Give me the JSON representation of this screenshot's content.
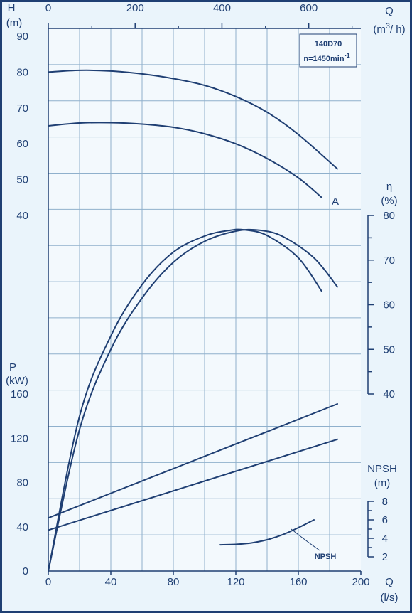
{
  "colors": {
    "ink": "#1f3f73",
    "grid": "#8fb0cc",
    "plot_bg": "#f3f9fd",
    "page_bg": "#eaf4fb",
    "border": "#1f3f73"
  },
  "chart_data": {
    "type": "line",
    "title": "",
    "model_label": "140D70",
    "speed_label": "n=1450min",
    "speed_label_sup": "-1",
    "x_axis": {
      "label_q": "Q",
      "label_unit": "(l/s)",
      "range": [
        0,
        200
      ],
      "ticks": [
        "0",
        "40",
        "80",
        "120",
        "160",
        "200"
      ]
    },
    "x_axis_top": {
      "label_q": "Q",
      "label_unit_pre": "(m",
      "label_unit_sup": "3",
      "label_unit_post": "/ h)",
      "range": [
        0,
        720
      ],
      "ticks": [
        "0",
        "200",
        "400",
        "600"
      ]
    },
    "head_axis": {
      "label": "H",
      "unit": "(m)",
      "range": [
        40,
        90
      ],
      "ticks": [
        "40",
        "50",
        "60",
        "70",
        "80",
        "90"
      ]
    },
    "efficiency_axis": {
      "label": "η",
      "unit": "(%)",
      "range": [
        40,
        80
      ],
      "ticks": [
        "40",
        "50",
        "60",
        "70",
        "80"
      ]
    },
    "power_axis": {
      "label": "P",
      "unit": "(kW)",
      "range": [
        0,
        160
      ],
      "ticks": [
        "0",
        "40",
        "80",
        "120",
        "160"
      ]
    },
    "npsh_axis": {
      "label": "NPSH",
      "unit": "(m)",
      "range": [
        2,
        8
      ],
      "ticks": [
        "2",
        "4",
        "6",
        "8"
      ]
    },
    "series": [
      {
        "group": "head",
        "curve": "full-impeller",
        "x": [
          0,
          20,
          40,
          60,
          80,
          100,
          120,
          140,
          160,
          185
        ],
        "y": [
          80,
          80.5,
          80.3,
          79.5,
          78.2,
          76.3,
          73.2,
          68.8,
          62.6,
          53
        ]
      },
      {
        "group": "head",
        "name": "A",
        "x": [
          0,
          20,
          40,
          60,
          80,
          100,
          120,
          140,
          160,
          175
        ],
        "y": [
          65,
          65.8,
          65.9,
          65.5,
          64.6,
          62.8,
          60,
          55.9,
          50.5,
          45
        ]
      },
      {
        "group": "efficiency",
        "curve": "full-impeller",
        "x": [
          0,
          20,
          40,
          60,
          80,
          100,
          120,
          135,
          150,
          170,
          185
        ],
        "y": [
          0,
          32,
          50,
          61.5,
          69.5,
          74.2,
          76.5,
          76.7,
          75.3,
          70.5,
          64
        ]
      },
      {
        "group": "efficiency",
        "curve": "A",
        "x": [
          0,
          20,
          40,
          60,
          80,
          100,
          115,
          125,
          140,
          160,
          175
        ],
        "y": [
          0,
          35,
          53,
          64.5,
          71.8,
          75.4,
          76.6,
          76.8,
          75.5,
          70.5,
          63
        ]
      },
      {
        "group": "power",
        "curve": "full-impeller",
        "x": [
          0,
          185
        ],
        "y": [
          48,
          151
        ]
      },
      {
        "group": "power",
        "curve": "A",
        "x": [
          0,
          185
        ],
        "y": [
          37,
          119
        ]
      },
      {
        "group": "npsh",
        "name": "NPSH",
        "x": [
          110,
          120,
          130,
          140,
          150,
          160,
          170
        ],
        "y": [
          3.3,
          3.35,
          3.5,
          3.85,
          4.4,
          5.15,
          6
        ]
      }
    ],
    "annotations": [
      "A",
      "NPSH"
    ],
    "grid": true
  }
}
